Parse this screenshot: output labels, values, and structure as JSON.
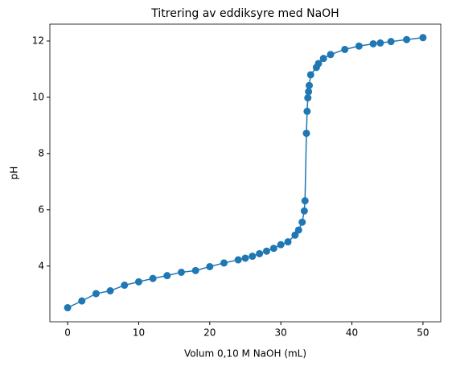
{
  "chart_data": {
    "type": "line",
    "title": "Titrering av eddiksyre med NaOH",
    "x_label": "Volum 0,10 M NaOH (mL)",
    "y_label": "pH",
    "x": [
      0,
      2,
      4,
      6,
      8,
      10,
      12,
      14,
      16,
      18,
      20,
      22,
      24,
      25,
      26,
      27,
      28,
      29,
      30,
      31,
      32,
      32.5,
      33,
      33.3,
      33.4,
      33.6,
      33.7,
      33.8,
      33.9,
      34.0,
      34.2,
      35,
      35.3,
      36,
      37,
      39,
      41,
      43,
      44,
      45.5,
      47.7,
      50
    ],
    "series": [
      {
        "name": "pH",
        "color": "#1f77b4",
        "marker": "o",
        "values": [
          2.52,
          2.76,
          3.02,
          3.12,
          3.32,
          3.44,
          3.56,
          3.66,
          3.78,
          3.84,
          3.98,
          4.11,
          4.22,
          4.28,
          4.35,
          4.44,
          4.53,
          4.63,
          4.76,
          4.86,
          5.1,
          5.28,
          5.56,
          5.96,
          6.32,
          8.72,
          9.5,
          9.98,
          10.2,
          10.42,
          10.8,
          11.06,
          11.2,
          11.38,
          11.52,
          11.7,
          11.82,
          11.9,
          11.93,
          11.98,
          12.05,
          12.12
        ]
      }
    ],
    "xlim": [
      -2.5,
      52.5
    ],
    "ylim": [
      2.02,
      12.6
    ],
    "xticks": [
      0,
      10,
      20,
      30,
      40,
      50
    ],
    "yticks": [
      4,
      6,
      8,
      10,
      12
    ],
    "grid": false
  }
}
